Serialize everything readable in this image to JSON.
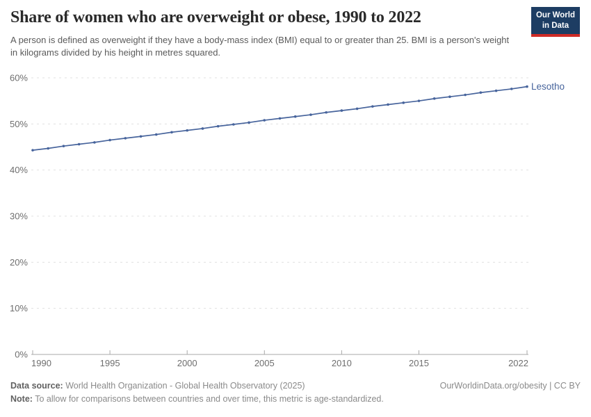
{
  "header": {
    "title": "Share of women who are overweight or obese, 1990 to 2022",
    "subtitle": "A person is defined as overweight if they have a body-mass index (BMI) equal to or greater than 25. BMI is a person's weight in kilograms divided by his height in metres squared.",
    "logo": {
      "line1": "Our World",
      "line2": "in Data"
    }
  },
  "chart_data": {
    "type": "line",
    "title": "Share of women who are overweight or obese, 1990 to 2022",
    "xlabel": "",
    "ylabel": "",
    "xlim": [
      1990,
      2022
    ],
    "ylim": [
      0,
      60
    ],
    "x_ticks": [
      1990,
      1995,
      2000,
      2005,
      2010,
      2015,
      2022
    ],
    "y_ticks": [
      0,
      10,
      20,
      30,
      40,
      50,
      60
    ],
    "y_tick_suffix": "%",
    "grid": "horizontal-dashed",
    "legend_position": "end-of-line-label",
    "series": [
      {
        "name": "Lesotho",
        "color": "#47649c",
        "x": [
          1990,
          1991,
          1992,
          1993,
          1994,
          1995,
          1996,
          1997,
          1998,
          1999,
          2000,
          2001,
          2002,
          2003,
          2004,
          2005,
          2006,
          2007,
          2008,
          2009,
          2010,
          2011,
          2012,
          2013,
          2014,
          2015,
          2016,
          2017,
          2018,
          2019,
          2020,
          2021,
          2022
        ],
        "values": [
          44.3,
          44.7,
          45.2,
          45.6,
          46.0,
          46.5,
          46.9,
          47.3,
          47.7,
          48.2,
          48.6,
          49.0,
          49.5,
          49.9,
          50.3,
          50.8,
          51.2,
          51.6,
          52.0,
          52.5,
          52.9,
          53.3,
          53.8,
          54.2,
          54.6,
          55.0,
          55.5,
          55.9,
          56.3,
          56.8,
          57.2,
          57.6,
          58.1
        ]
      }
    ]
  },
  "footer": {
    "datasource_label": "Data source:",
    "datasource_text": " World Health Organization - Global Health Observatory (2025)",
    "note_label": "Note:",
    "note_text": " To allow for comparisons between countries and over time, this metric is age-standardized.",
    "attribution": "OurWorldinData.org/obesity | CC BY"
  },
  "colors": {
    "accent_blue": "#47649c",
    "logo_bg": "#1d3d63",
    "logo_stripe": "#cf2b26",
    "gridline": "#e0e0e0",
    "axis": "#a8a8a8",
    "tick_label": "#6e6e6e"
  }
}
